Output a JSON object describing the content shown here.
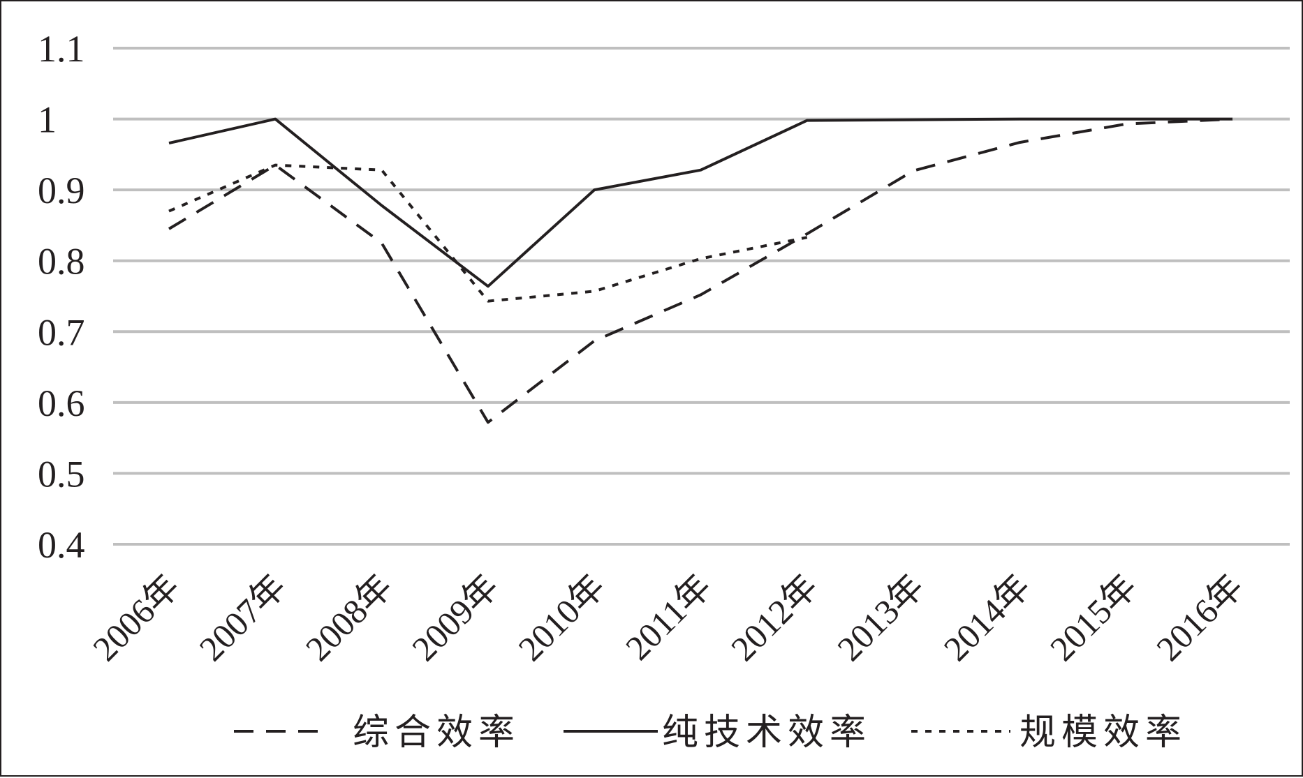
{
  "chart_data": {
    "type": "line",
    "categories": [
      "2006年",
      "2007年",
      "2008年",
      "2009年",
      "2010年",
      "2011年",
      "2012年",
      "2013年",
      "2014年",
      "2015年",
      "2016年"
    ],
    "series": [
      {
        "name": "综合效率",
        "dash": "dashed",
        "values": [
          0.845,
          0.935,
          0.825,
          0.572,
          0.687,
          0.752,
          0.838,
          0.927,
          0.967,
          0.993,
          1.0
        ]
      },
      {
        "name": "纯技术效率",
        "dash": "solid",
        "values": [
          0.966,
          1.0,
          0.878,
          0.764,
          0.9,
          0.928,
          0.998,
          0.999,
          1.0,
          1.0,
          1.0
        ]
      },
      {
        "name": "规模效率",
        "dash": "dotted",
        "values": [
          0.87,
          0.935,
          0.928,
          0.743,
          0.757,
          0.803,
          0.833,
          null,
          null,
          null,
          null
        ]
      }
    ],
    "yticks": [
      "1.1",
      "1",
      "0.9",
      "0.8",
      "0.7",
      "0.6",
      "0.5",
      "0.4"
    ],
    "ylim": [
      0.4,
      1.1
    ],
    "grid": true,
    "legend_position": "bottom",
    "colors": {
      "line": "#231f20",
      "grid": "#bfbfbf"
    }
  }
}
